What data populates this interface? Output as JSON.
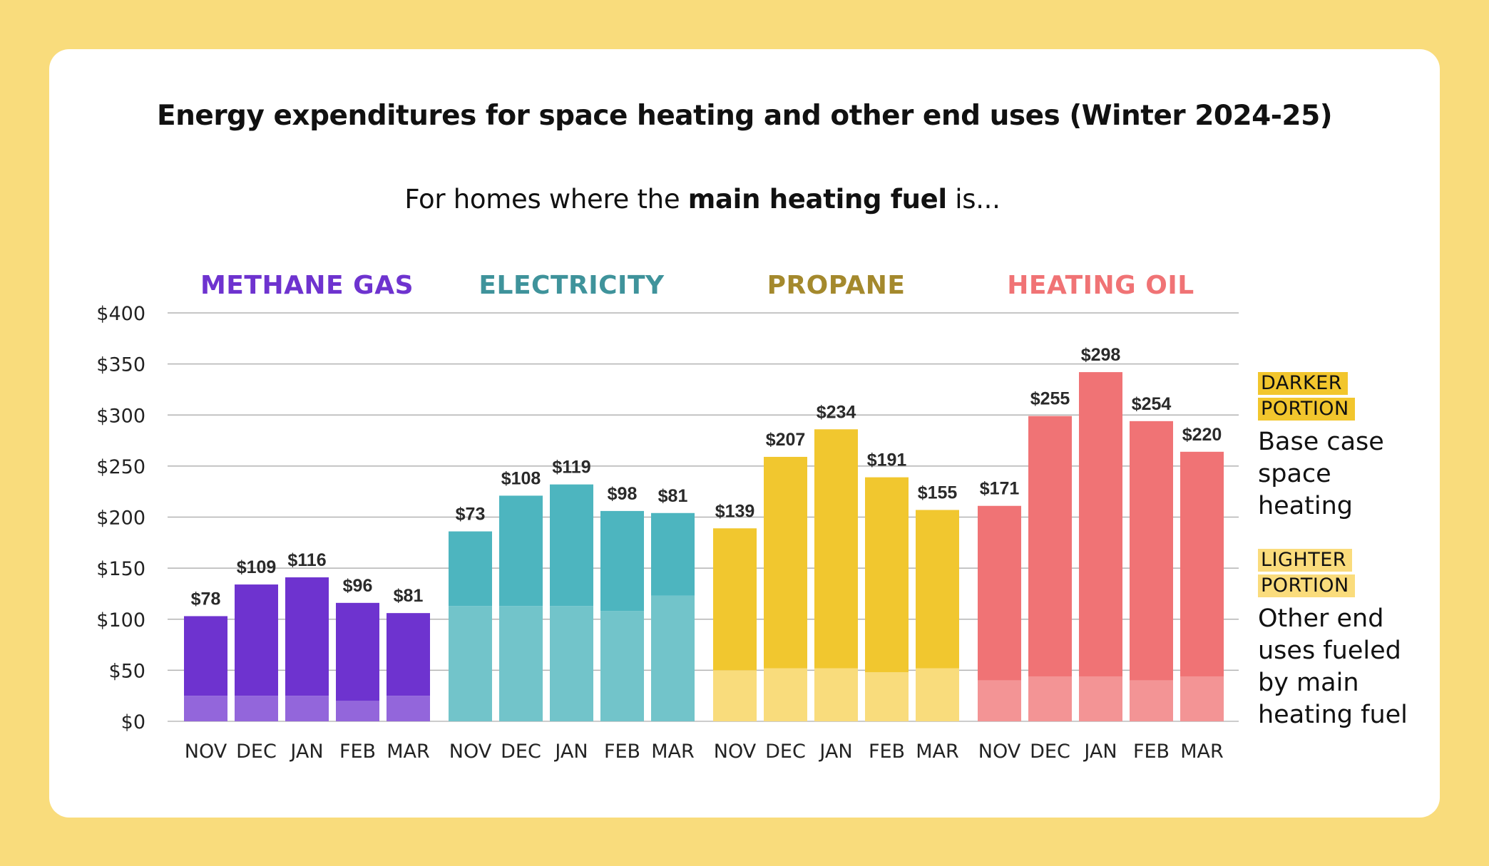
{
  "title": "Energy expenditures for space heating and other end uses (Winter 2024-25)",
  "subtitle": {
    "prefix": "For homes where the ",
    "bold": "main heating fuel",
    "suffix": " is..."
  },
  "legend": {
    "darker_tag_line1": "DARKER",
    "darker_tag_line2": "PORTION",
    "darker_desc_lines": [
      "Base case",
      "space",
      "heating"
    ],
    "lighter_tag_line1": "LIGHTER",
    "lighter_tag_line2": "PORTION",
    "lighter_desc_lines": [
      "Other end",
      "uses fueled",
      "by main",
      "heating fuel"
    ],
    "darker_tag_color": "#f2c62d",
    "lighter_tag_color": "#fadc7c"
  },
  "chart_data": {
    "type": "bar",
    "stacked": true,
    "title": "Energy expenditures for space heating and other end uses (Winter 2024-25)",
    "xlabel": "",
    "ylabel": "",
    "ylim": [
      0,
      400
    ],
    "yticks": [
      0,
      50,
      100,
      150,
      200,
      250,
      300,
      350,
      400
    ],
    "ytick_labels": [
      "$0",
      "$50",
      "$100",
      "$150",
      "$200",
      "$250",
      "$300",
      "$350",
      "$400"
    ],
    "grid": true,
    "categories": [
      "NOV",
      "DEC",
      "JAN",
      "FEB",
      "MAR"
    ],
    "legend_position": "right",
    "groups": [
      {
        "name": "METHANE GAS",
        "header_color": "#6e33cf",
        "dark_color": "#6e33cf",
        "light_color": "#9366db",
        "space_heating": [
          78,
          109,
          116,
          96,
          81
        ],
        "space_heating_labels": [
          "$78",
          "$109",
          "$116",
          "$96",
          "$81"
        ],
        "other_end_uses": [
          25,
          25,
          25,
          20,
          25
        ]
      },
      {
        "name": "ELECTRICITY",
        "header_color": "#3f939b",
        "dark_color": "#4db5bf",
        "light_color": "#72c4ca",
        "space_heating": [
          73,
          108,
          119,
          98,
          81
        ],
        "space_heating_labels": [
          "$73",
          "$108",
          "$119",
          "$98",
          "$81"
        ],
        "other_end_uses": [
          113,
          113,
          113,
          108,
          123
        ]
      },
      {
        "name": "PROPANE",
        "header_color": "#a4892d",
        "dark_color": "#f1c72f",
        "light_color": "#f9dc7c",
        "space_heating": [
          139,
          207,
          234,
          191,
          155
        ],
        "space_heating_labels": [
          "$139",
          "$207",
          "$234",
          "$191",
          "$155"
        ],
        "other_end_uses": [
          50,
          52,
          52,
          48,
          52
        ]
      },
      {
        "name": "HEATING OIL",
        "header_color": "#f07375",
        "dark_color": "#f07375",
        "light_color": "#f39495",
        "space_heating": [
          171,
          255,
          298,
          254,
          220
        ],
        "space_heating_labels": [
          "$171",
          "$255",
          "$298",
          "$254",
          "$220"
        ],
        "other_end_uses": [
          40,
          44,
          44,
          40,
          44
        ]
      }
    ]
  }
}
